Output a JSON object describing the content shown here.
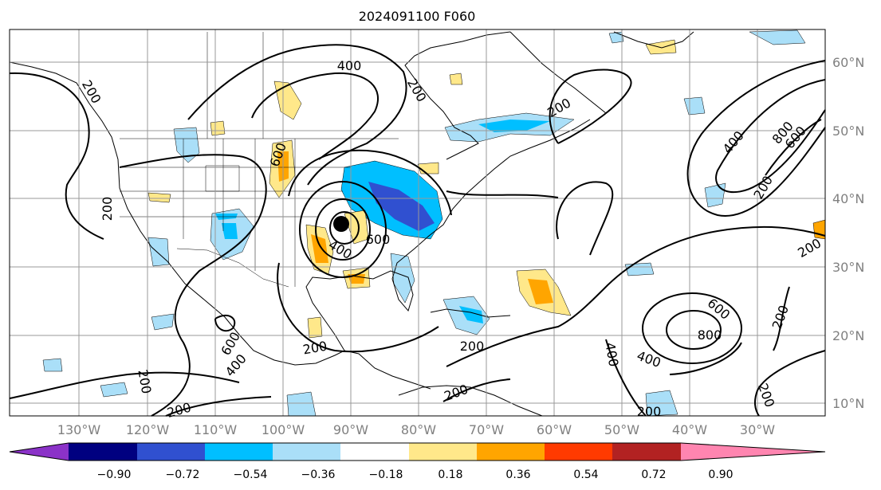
{
  "map": {
    "title": "2024091100 F060",
    "longitude_labels": [
      "130°W",
      "120°W",
      "110°W",
      "100°W",
      "90°W",
      "80°W",
      "70°W",
      "60°W",
      "50°W",
      "40°W",
      "30°W"
    ],
    "latitude_labels": [
      "60°N",
      "50°N",
      "40°N",
      "30°N",
      "20°N",
      "10°N"
    ],
    "contour_labels": [
      "400",
      "200",
      "200",
      "200",
      "600",
      "400",
      "600",
      "200",
      "400",
      "800",
      "600",
      "200",
      "200",
      "600",
      "400",
      "200",
      "200",
      "400",
      "200",
      "800",
      "600",
      "200",
      "400",
      "200",
      "200",
      "200",
      "200"
    ],
    "storm_marker": "black-dot"
  },
  "colorbar": {
    "ticks": [
      "−0.90",
      "−0.72",
      "−0.54",
      "−0.36",
      "−0.18",
      "0.18",
      "0.36",
      "0.54",
      "0.72",
      "0.90"
    ],
    "colors": [
      "#8b32c8",
      "#000080",
      "#3050d0",
      "#00bfff",
      "#aadff8",
      "#ffffff",
      "#ffe88a",
      "#ffa500",
      "#ff3a00",
      "#b22222",
      "#ff85b0"
    ]
  }
}
